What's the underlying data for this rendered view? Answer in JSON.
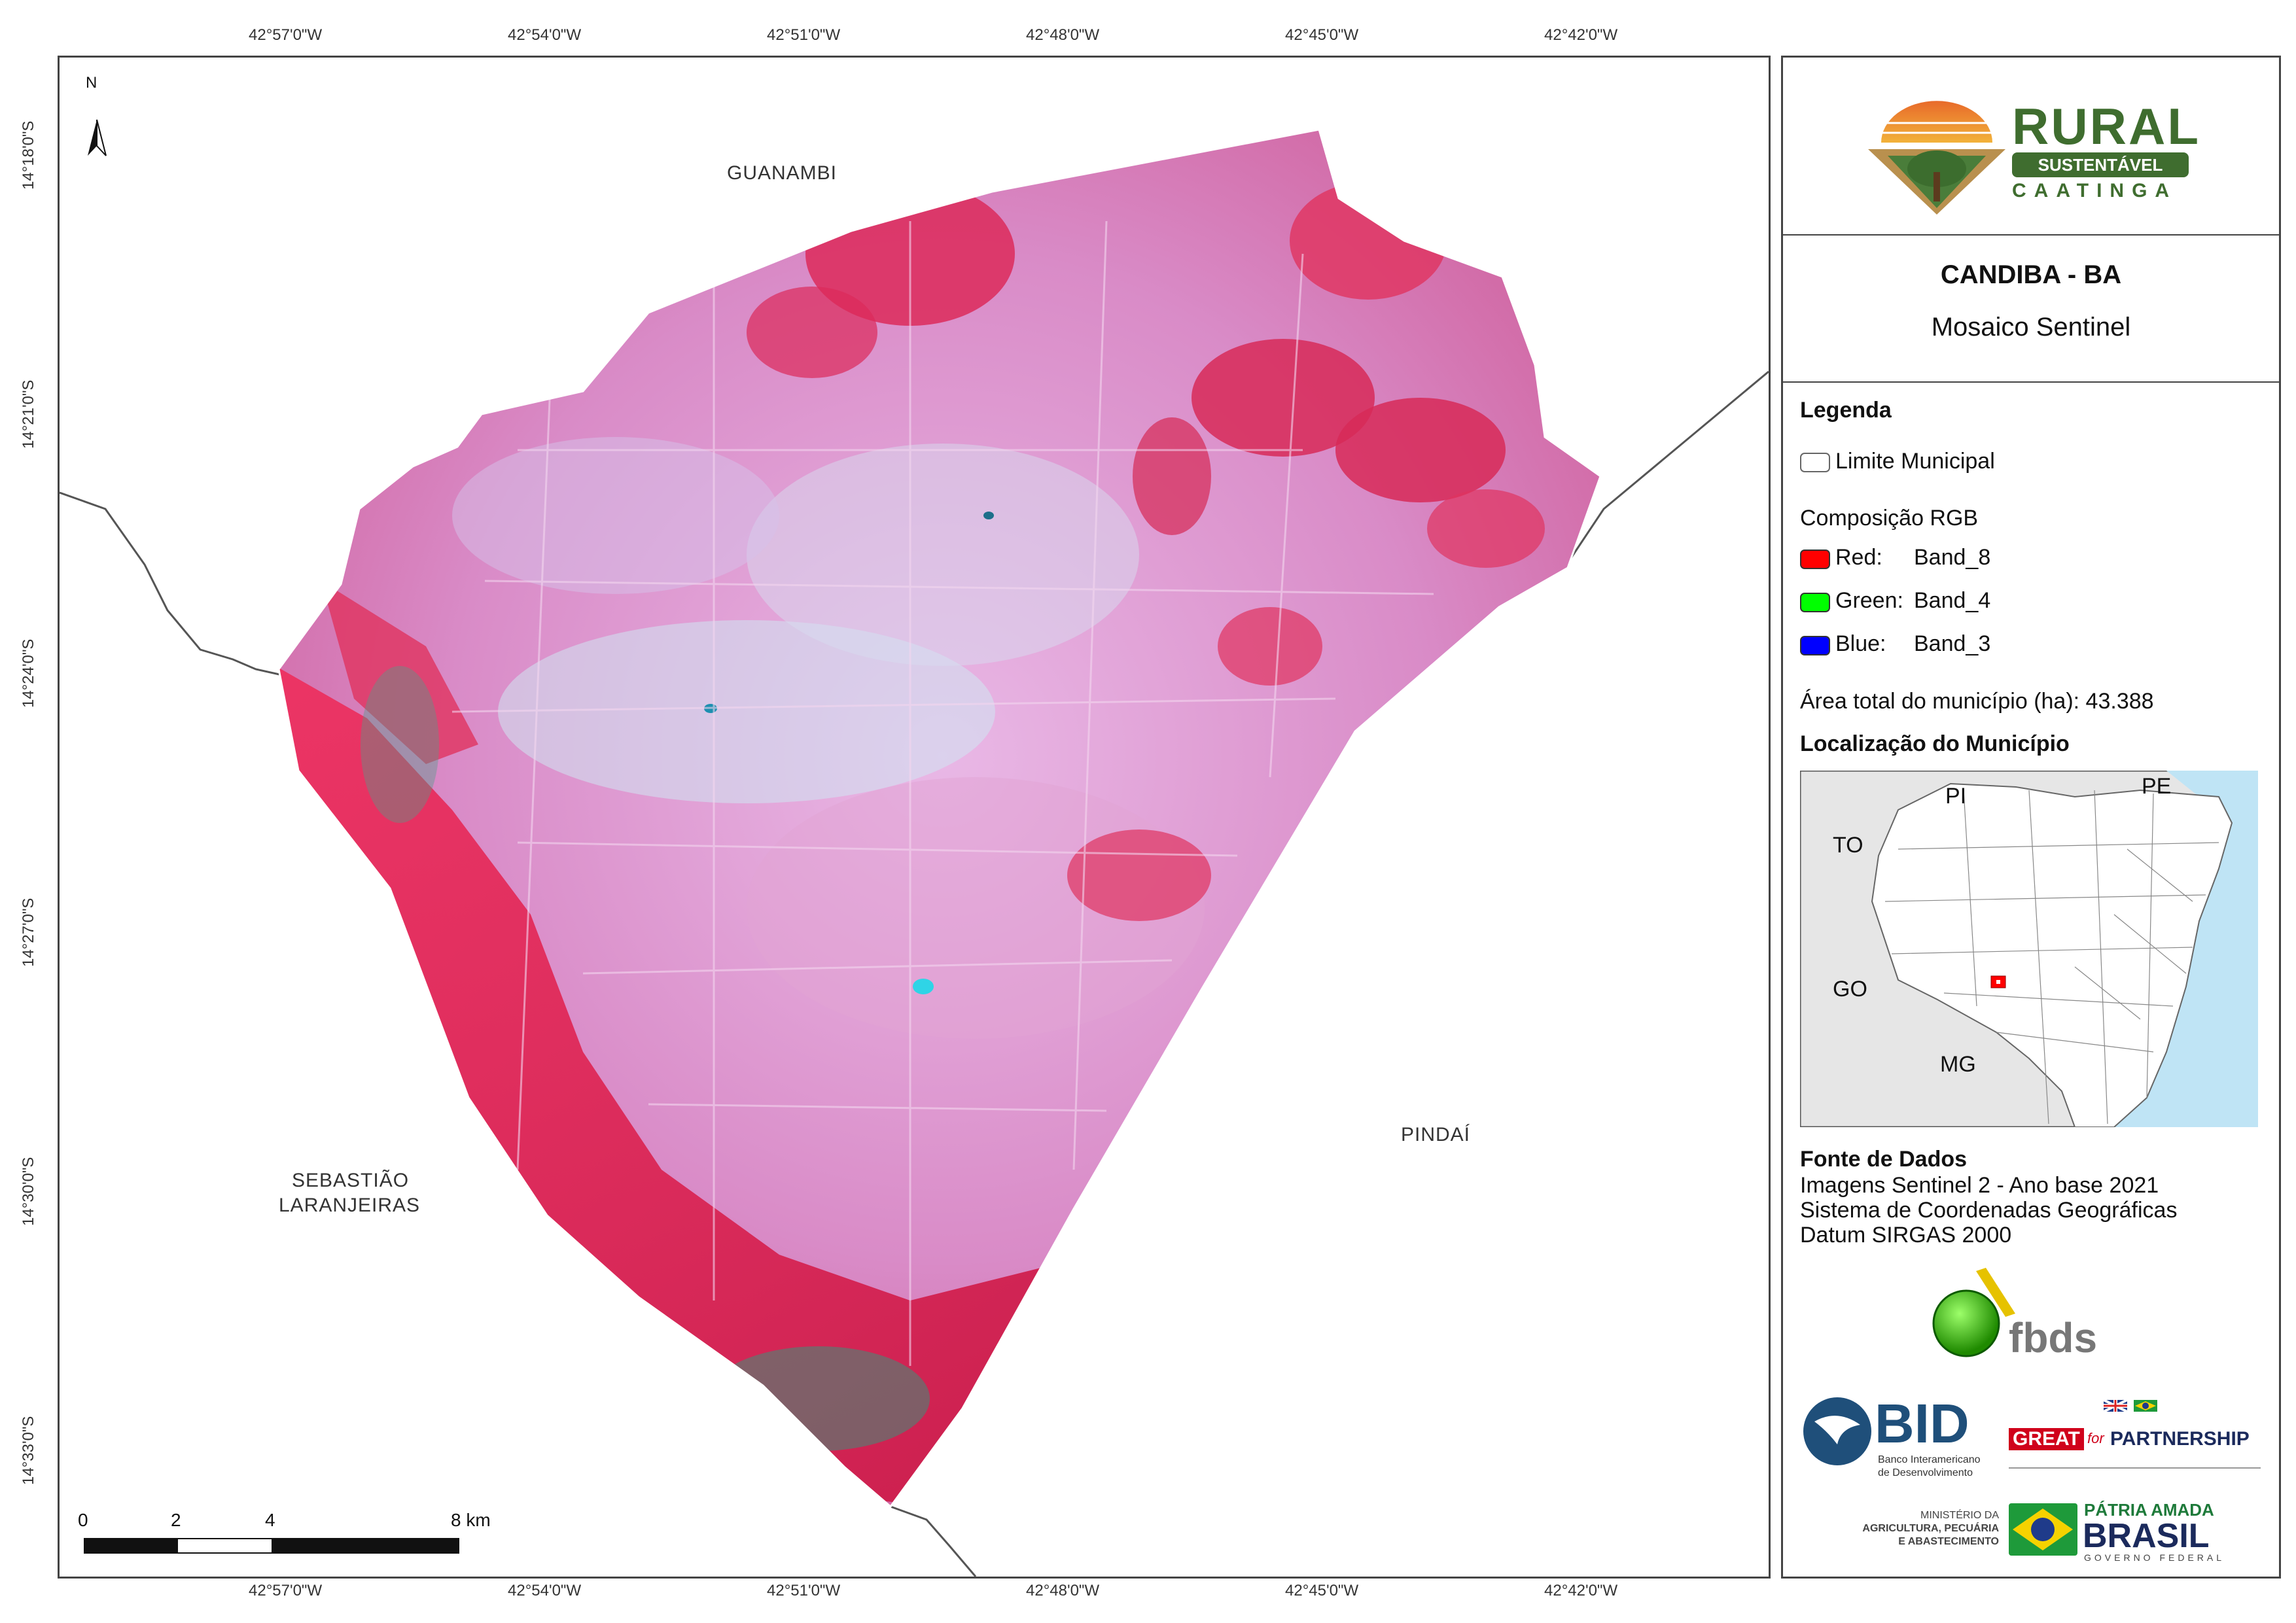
{
  "coords": {
    "longitude": [
      "42°57'0\"W",
      "42°54'0\"W",
      "42°51'0\"W",
      "42°48'0\"W",
      "42°45'0\"W",
      "42°42'0\"W"
    ],
    "latitude": [
      "14°18'0\"S",
      "14°21'0\"S",
      "14°24'0\"S",
      "14°27'0\"S",
      "14°30'0\"S",
      "14°33'0\"S"
    ]
  },
  "map": {
    "north_label": "N",
    "neighbors": {
      "north": "GUANAMBI",
      "east": "PINDAÍ",
      "west_line1": "SEBASTIÃO",
      "west_line2": "LARANJEIRAS"
    },
    "scale": {
      "labels": [
        "0",
        "2",
        "4",
        "8 km"
      ]
    }
  },
  "legend": {
    "logo": {
      "word1": "RURAL",
      "word2": "SUSTENTÁVEL",
      "word3": "CAATINGA"
    },
    "title": "CANDIBA - BA",
    "subtitle": "Mosaico Sentinel",
    "heading": "Legenda",
    "boundary_label": "Limite Municipal",
    "rgb_heading": "Composição RGB",
    "rgb": [
      {
        "channel": "Red:",
        "band": "Band_8",
        "color": "#ff0000"
      },
      {
        "channel": "Green:",
        "band": "Band_4",
        "color": "#00ff00"
      },
      {
        "channel": "Blue:",
        "band": "Band_3",
        "color": "#0000ff"
      }
    ],
    "area_text": "Área total do município (ha): 43.388",
    "location_heading": "Localização do Município",
    "inset_states": [
      "PI",
      "PE",
      "TO",
      "GO",
      "MG"
    ],
    "sources_heading": "Fonte de Dados",
    "sources": [
      "Imagens Sentinel 2 - Ano base 2021",
      "Sistema de Coordenadas Geográficas",
      "Datum SIRGAS 2000"
    ]
  },
  "partners": {
    "fbds": "fbds",
    "bid": "BID",
    "bid_sub1": "Banco Interamericano",
    "bid_sub2": "de Desenvolvimento",
    "great": "GREAT",
    "great_for": "for",
    "great_partner": "PARTNERSHIP",
    "ministry1": "MINISTÉRIO DA",
    "ministry2": "AGRICULTURA, PECUÁRIA",
    "ministry3": "E ABASTECIMENTO",
    "patria": "PÁTRIA AMADA",
    "brasil": "BRASIL",
    "gov": "GOVERNO FEDERAL"
  }
}
